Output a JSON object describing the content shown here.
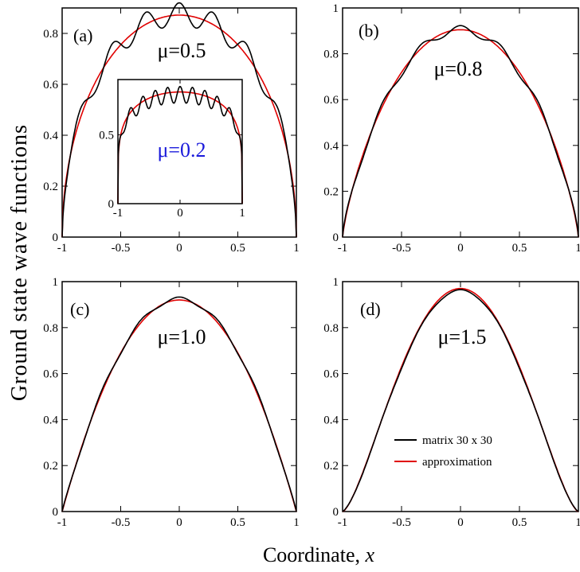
{
  "figure": {
    "ylabel": "Ground state wave functions",
    "xlabel_text": "Coordinate, ",
    "xlabel_var": "x"
  },
  "legend": {
    "items": [
      {
        "label": "matrix 30 x 30",
        "color": "#000000"
      },
      {
        "label": "approximation",
        "color": "#e00000"
      }
    ]
  },
  "chart_data": [
    {
      "type": "line",
      "panel": "(a)",
      "annotation": "μ=0.5",
      "xlim": [
        -1,
        1
      ],
      "ylim": [
        0,
        0.9
      ],
      "xticks": [
        -1,
        -0.5,
        0,
        0.5,
        1
      ],
      "xticklabels": [
        "-1",
        "-0.5",
        "0",
        "0.5",
        "1"
      ],
      "yticks": [
        0,
        0.2,
        0.4,
        0.6,
        0.8
      ],
      "yticklabels": [
        "0",
        "0.2",
        "0.4",
        "0.6",
        "0.8"
      ],
      "series": [
        {
          "color": "#000000",
          "amplitude": 0.875,
          "mu": 0.5,
          "ripple": 0.045,
          "ripple_freq": 7
        },
        {
          "color": "#e00000",
          "amplitude": 0.872,
          "mu": 0.5,
          "ripple": 0,
          "ripple_freq": 0
        }
      ]
    },
    {
      "type": "line",
      "panel": "(a) inset",
      "annotation": "μ=0.2",
      "annotation_color": "#1a1adb",
      "xlim": [
        -1,
        1
      ],
      "ylim": [
        0,
        0.9
      ],
      "xticks": [
        -1,
        0,
        1
      ],
      "xticklabels": [
        "-1",
        "0",
        "1"
      ],
      "yticks": [
        0,
        0.5
      ],
      "yticklabels": [
        "0",
        "0.5"
      ],
      "series": [
        {
          "color": "#000000",
          "amplitude": 0.79,
          "mu": 0.2,
          "ripple": 0.06,
          "ripple_freq": 10
        },
        {
          "color": "#e00000",
          "amplitude": 0.81,
          "mu": 0.2,
          "ripple": 0,
          "ripple_freq": 0
        }
      ]
    },
    {
      "type": "line",
      "panel": "(b)",
      "annotation": "μ=0.8",
      "xlim": [
        -1,
        1
      ],
      "ylim": [
        0,
        1
      ],
      "xticks": [
        -1,
        -0.5,
        0,
        0.5,
        1
      ],
      "xticklabels": [
        "-1",
        "-0.5",
        "0",
        "0.5",
        "1"
      ],
      "yticks": [
        0,
        0.2,
        0.4,
        0.6,
        0.8,
        1
      ],
      "yticklabels": [
        "0",
        "0.2",
        "0.4",
        "0.6",
        "0.8",
        "1"
      ],
      "series": [
        {
          "color": "#000000",
          "amplitude": 0.905,
          "mu": 0.8,
          "ripple": 0.018,
          "ripple_freq": 6
        },
        {
          "color": "#e00000",
          "amplitude": 0.905,
          "mu": 0.8,
          "ripple": 0,
          "ripple_freq": 0
        }
      ]
    },
    {
      "type": "line",
      "panel": "(c)",
      "annotation": "μ=1.0",
      "xlim": [
        -1,
        1
      ],
      "ylim": [
        0,
        1
      ],
      "xticks": [
        -1,
        -0.5,
        0,
        0.5,
        1
      ],
      "xticklabels": [
        "-1",
        "-0.5",
        "0",
        "0.5",
        "1"
      ],
      "yticks": [
        0,
        0.2,
        0.4,
        0.6,
        0.8,
        1
      ],
      "yticklabels": [
        "0",
        "0.2",
        "0.4",
        "0.6",
        "0.8",
        "1"
      ],
      "series": [
        {
          "color": "#000000",
          "amplitude": 0.925,
          "mu": 1.0,
          "ripple": 0.008,
          "ripple_freq": 6
        },
        {
          "color": "#e00000",
          "amplitude": 0.92,
          "mu": 1.0,
          "ripple": 0,
          "ripple_freq": 0
        }
      ]
    },
    {
      "type": "line",
      "panel": "(d)",
      "annotation": "μ=1.5",
      "xlim": [
        -1,
        1
      ],
      "ylim": [
        0,
        1
      ],
      "xticks": [
        -1,
        -0.5,
        0,
        0.5,
        1
      ],
      "xticklabels": [
        "-1",
        "-0.5",
        "0",
        "0.5",
        "1"
      ],
      "yticks": [
        0,
        0.2,
        0.4,
        0.6,
        0.8,
        1
      ],
      "yticklabels": [
        "0",
        "0.2",
        "0.4",
        "0.6",
        "0.8",
        "1"
      ],
      "series": [
        {
          "color": "#000000",
          "amplitude": 0.962,
          "mu": 1.5,
          "ripple": 0.003,
          "ripple_freq": 6
        },
        {
          "color": "#e00000",
          "amplitude": 0.97,
          "mu": 1.5,
          "ripple": 0,
          "ripple_freq": 0
        }
      ]
    }
  ]
}
